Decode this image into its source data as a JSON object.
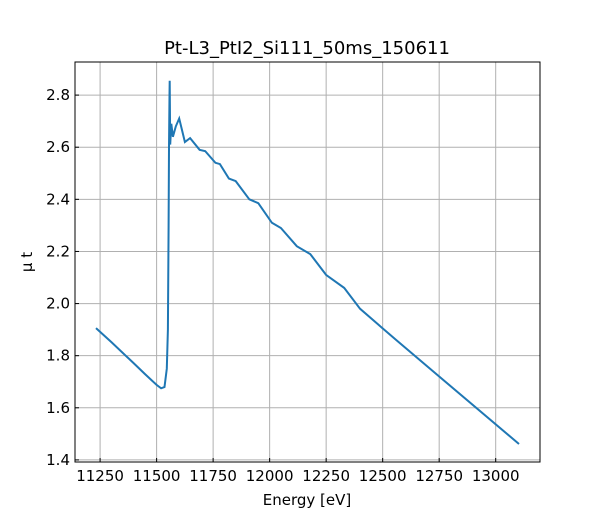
{
  "chart_data": {
    "type": "line",
    "title": "Pt-L3_PtI2_Si111_50ms_150611",
    "xlabel": "Energy [eV]",
    "ylabel": "μ t",
    "xlim": [
      11139,
      13196
    ],
    "ylim": [
      1.392,
      2.927
    ],
    "grid": true,
    "xticks": [
      11250,
      11500,
      11750,
      12000,
      12250,
      12500,
      12750,
      13000
    ],
    "yticks": [
      1.4,
      1.6,
      1.8,
      2.0,
      2.2,
      2.4,
      2.6,
      2.8
    ],
    "ytick_labels": [
      "1.4",
      "1.6",
      "1.8",
      "2.0",
      "2.2",
      "2.4",
      "2.6",
      "2.8"
    ],
    "color": "#1f77b4",
    "series": [
      {
        "name": "mu t",
        "x": [
          11232,
          11300,
          11400,
          11450,
          11500,
          11520,
          11535,
          11545,
          11550,
          11553,
          11555,
          11557,
          11558,
          11560,
          11565,
          11572,
          11585,
          11600,
          11625,
          11648,
          11690,
          11715,
          11760,
          11780,
          11820,
          11850,
          11910,
          11950,
          12010,
          12050,
          12120,
          12180,
          12250,
          12330,
          12400,
          12480,
          12560,
          12750,
          13103
        ],
        "y": [
          1.906,
          1.852,
          1.77,
          1.728,
          1.688,
          1.675,
          1.68,
          1.75,
          1.9,
          2.3,
          2.6,
          2.8,
          2.855,
          2.61,
          2.69,
          2.64,
          2.68,
          2.71,
          2.62,
          2.635,
          2.59,
          2.585,
          2.54,
          2.535,
          2.48,
          2.47,
          2.4,
          2.385,
          2.31,
          2.29,
          2.22,
          2.19,
          2.11,
          2.06,
          1.98,
          1.92,
          1.86,
          1.72,
          1.461
        ]
      }
    ]
  }
}
